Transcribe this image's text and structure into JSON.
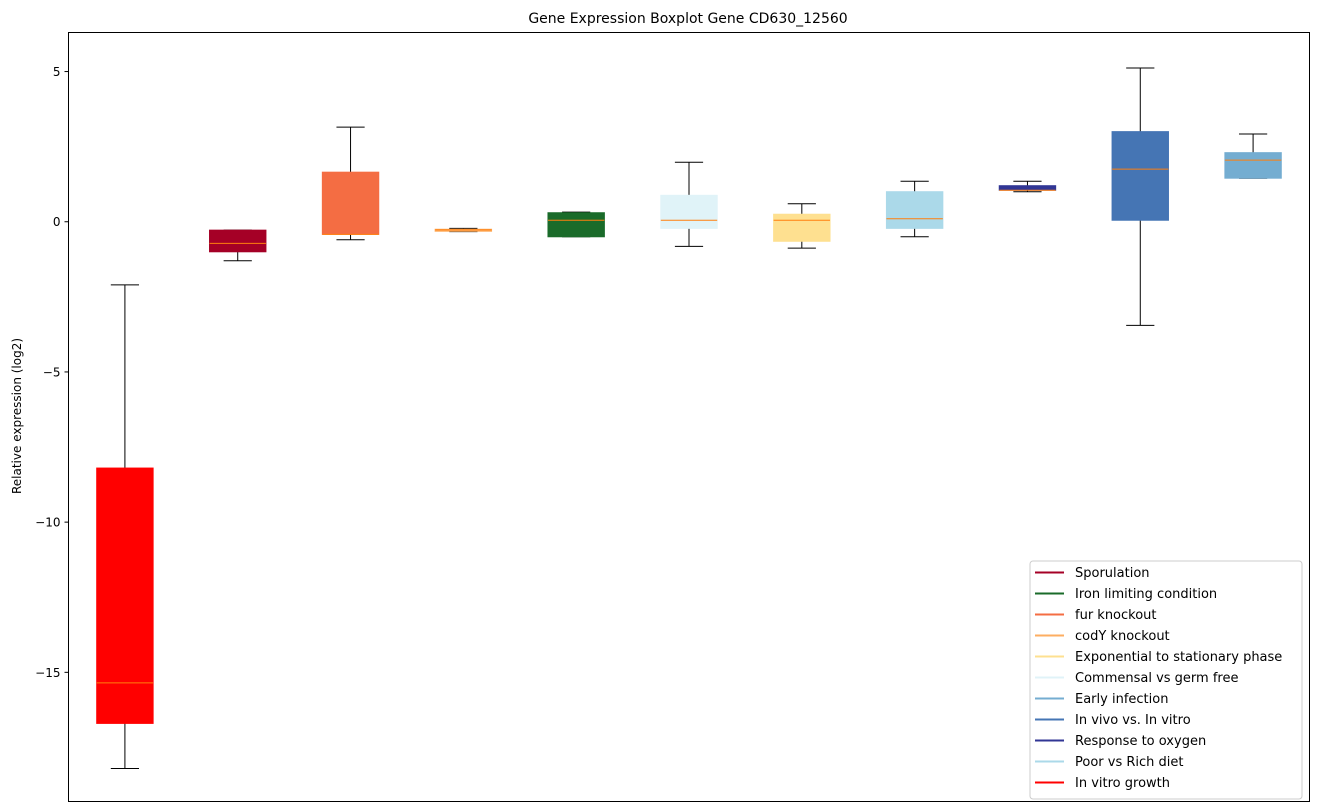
{
  "chart_data": {
    "type": "boxplot",
    "title": "Gene Expression Boxplot Gene CD630_12560",
    "xlabel": "",
    "ylabel": "Relative expression (log2)",
    "ylim": [
      -19.3,
      6.3
    ],
    "yticks": [
      5,
      0,
      -5,
      -10,
      -15
    ],
    "ytick_labels": [
      "5",
      "0",
      "−5",
      "−10",
      "−15"
    ],
    "grid": false,
    "legend_location": "lower right",
    "median_color": "#ff7f0e",
    "whisker_color": "#000000",
    "boxes": [
      {
        "name": "In vitro growth",
        "color": "#ff0000",
        "whislo": -18.2,
        "q1": -16.7,
        "med": -15.35,
        "q3": -8.2,
        "whishi": -2.1
      },
      {
        "name": "Sporulation",
        "color": "#a50026",
        "whislo": -1.3,
        "q1": -1.0,
        "med": -0.72,
        "q3": -0.28,
        "whishi": -0.28
      },
      {
        "name": "fur knockout",
        "color": "#f46d43",
        "whislo": -0.6,
        "q1": -0.42,
        "med": -0.42,
        "q3": 1.65,
        "whishi": 3.15
      },
      {
        "name": "codY knockout",
        "color": "#fdae61",
        "whislo": -0.33,
        "q1": -0.3,
        "med": -0.27,
        "q3": -0.25,
        "whishi": -0.22
      },
      {
        "name": "Iron limiting condition",
        "color": "#1a6b2a",
        "whislo": -0.5,
        "q1": -0.5,
        "med": 0.05,
        "q3": 0.3,
        "whishi": 0.32
      },
      {
        "name": "Commensal vs germ free",
        "color": "#e0f3f8",
        "whislo": -0.82,
        "q1": -0.22,
        "med": 0.05,
        "q3": 0.88,
        "whishi": 1.98
      },
      {
        "name": "Exponential to stationary phase",
        "color": "#fee090",
        "whislo": -0.88,
        "q1": -0.65,
        "med": 0.05,
        "q3": 0.25,
        "whishi": 0.6
      },
      {
        "name": "Poor vs Rich diet",
        "color": "#abd9e9",
        "whislo": -0.5,
        "q1": -0.22,
        "med": 0.1,
        "q3": 1.0,
        "whishi": 1.35
      },
      {
        "name": "Response to oxygen",
        "color": "#313695",
        "whislo": 1.0,
        "q1": 1.05,
        "med": 1.05,
        "q3": 1.2,
        "whishi": 1.35
      },
      {
        "name": "In vivo vs. In vitro",
        "color": "#4575b4",
        "whislo": -3.45,
        "q1": 0.05,
        "med": 1.75,
        "q3": 3.0,
        "whishi": 5.12
      },
      {
        "name": "Early infection",
        "color": "#74add1",
        "whislo": 1.45,
        "q1": 1.45,
        "med": 2.05,
        "q3": 2.3,
        "whishi": 2.92
      }
    ],
    "legend": [
      {
        "label": "Sporulation",
        "color": "#a50026"
      },
      {
        "label": "Iron limiting condition",
        "color": "#1a6b2a"
      },
      {
        "label": "fur knockout",
        "color": "#f46d43"
      },
      {
        "label": "codY knockout",
        "color": "#fdae61"
      },
      {
        "label": "Exponential to stationary phase",
        "color": "#fee090"
      },
      {
        "label": "Commensal vs germ free",
        "color": "#e0f3f8"
      },
      {
        "label": "Early infection",
        "color": "#74add1"
      },
      {
        "label": "In vivo vs. In vitro",
        "color": "#4575b4"
      },
      {
        "label": "Response to oxygen",
        "color": "#313695"
      },
      {
        "label": "Poor vs Rich diet",
        "color": "#abd9e9"
      },
      {
        "label": "In vitro growth",
        "color": "#ff0000"
      }
    ]
  }
}
